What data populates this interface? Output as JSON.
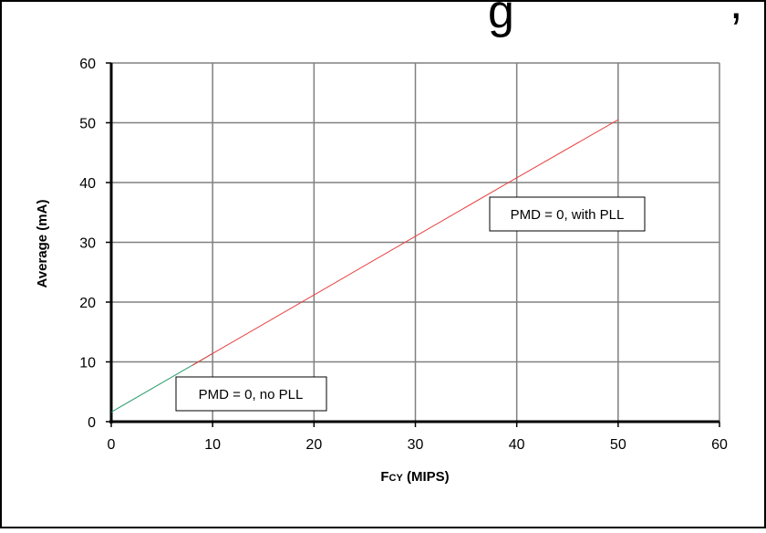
{
  "title_fragment": "g",
  "title_fragment_end": ",",
  "chart_data": {
    "type": "line",
    "xlabel": "FCY (MIPS)",
    "ylabel": "Average (mA)",
    "xlim": [
      0,
      60
    ],
    "ylim": [
      0,
      60
    ],
    "x_ticks": [
      0,
      10,
      20,
      30,
      40,
      50,
      60
    ],
    "y_ticks": [
      0,
      10,
      20,
      30,
      40,
      50,
      60
    ],
    "grid": true,
    "series": [
      {
        "name": "PMD = 0, no PLL",
        "color": "#2e9e6e",
        "x": [
          0,
          10
        ],
        "y": [
          1.6,
          11.4
        ]
      },
      {
        "name": "PMD = 0, with PLL",
        "color": "#e84040",
        "x": [
          8,
          10,
          20,
          30,
          40,
          50
        ],
        "y": [
          9.4,
          11.4,
          21.2,
          31.0,
          40.8,
          50.5
        ]
      }
    ],
    "annotations": [
      {
        "text": "PMD = 0, with PLL"
      },
      {
        "text": "PMD = 0, no PLL"
      }
    ]
  }
}
